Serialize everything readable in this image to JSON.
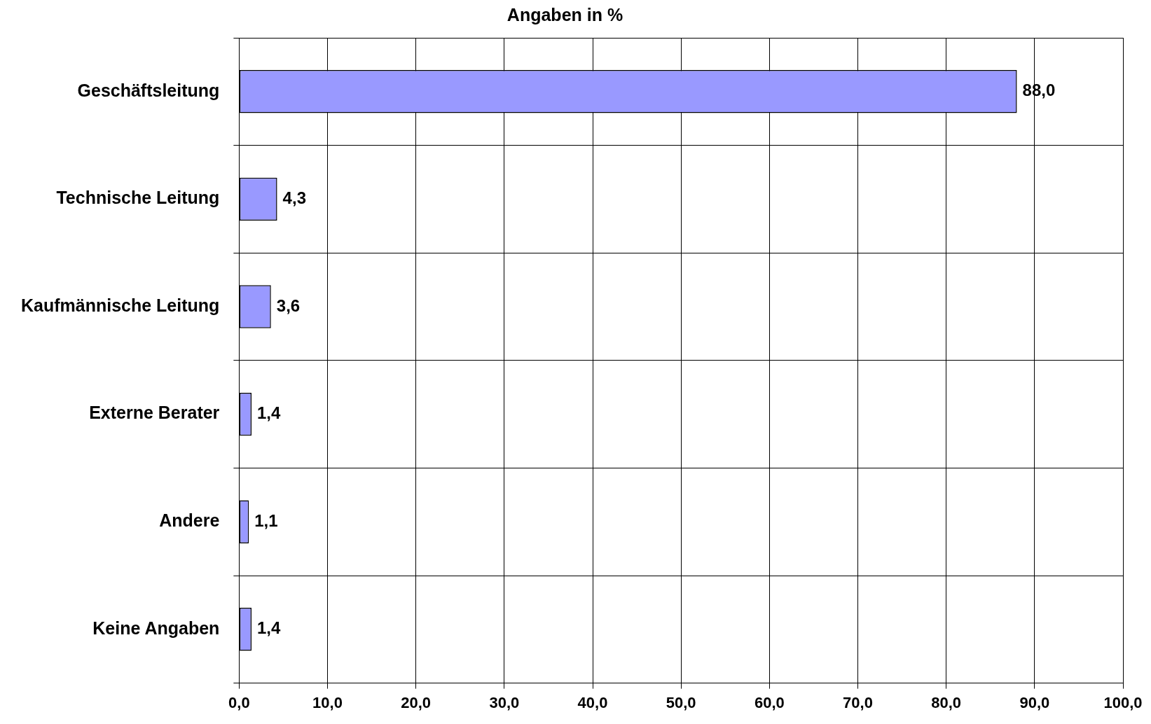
{
  "chart_data": {
    "type": "bar",
    "orientation": "horizontal",
    "title": "Angaben in %",
    "categories": [
      "Geschäftsleitung",
      "Technische Leitung",
      "Kaufmännische Leitung",
      "Externe Berater",
      "Andere",
      "Keine Angaben"
    ],
    "values": [
      88.0,
      4.3,
      3.6,
      1.4,
      1.1,
      1.4
    ],
    "value_labels": [
      "88,0",
      "4,3",
      "3,6",
      "1,4",
      "1,1",
      "1,4"
    ],
    "color": "#9999ff",
    "xlim": [
      0,
      100
    ],
    "xticks": [
      {
        "value": 0,
        "label": "0,0"
      },
      {
        "value": 10,
        "label": "10,0"
      },
      {
        "value": 20,
        "label": "20,0"
      },
      {
        "value": 30,
        "label": "30,0"
      },
      {
        "value": 40,
        "label": "40,0"
      },
      {
        "value": 50,
        "label": "50,0"
      },
      {
        "value": 60,
        "label": "60,0"
      },
      {
        "value": 70,
        "label": "70,0"
      },
      {
        "value": 80,
        "label": "80,0"
      },
      {
        "value": 90,
        "label": "90,0"
      },
      {
        "value": 100,
        "label": "100,0"
      }
    ],
    "grid": true,
    "legend": false
  }
}
